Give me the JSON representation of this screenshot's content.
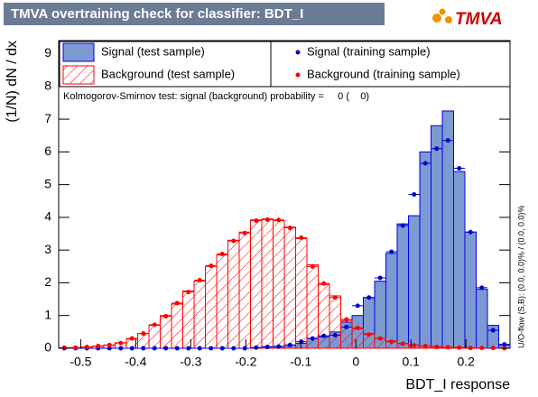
{
  "chart_data": {
    "type": "histogram",
    "title": "TMVA overtraining check for classifier: BDT_I",
    "logo_text": "TMVA",
    "y_label": "(1/N) dN / dx",
    "x_label": "BDT_I response",
    "side_label": "U/O-flow (S,B): (0.0, 0.0)% / (0.0, 0.0)%",
    "ks_text": "Kolmogorov-Smirnov test: signal (background) probability =     0 (    0)",
    "xlim": [
      -0.54,
      0.28
    ],
    "ylim": [
      0,
      9.4
    ],
    "xticks": [
      -0.5,
      -0.4,
      -0.3,
      -0.2,
      -0.1,
      0,
      0.1,
      0.2
    ],
    "yticks": [
      0,
      1,
      2,
      3,
      4,
      5,
      6,
      7,
      8,
      9
    ],
    "bins": [
      -0.54,
      -0.5195,
      -0.499,
      -0.4785,
      -0.458,
      -0.4375,
      -0.417,
      -0.3965,
      -0.376,
      -0.3555,
      -0.335,
      -0.3145,
      -0.294,
      -0.2735,
      -0.253,
      -0.2325,
      -0.212,
      -0.1915,
      -0.171,
      -0.1505,
      -0.13,
      -0.1095,
      -0.089,
      -0.0685,
      -0.048,
      -0.0275,
      -0.007,
      0.0135,
      0.034,
      0.0545,
      0.075,
      0.0955,
      0.116,
      0.1365,
      0.157,
      0.1775,
      0.198,
      0.2185,
      0.239,
      0.2595,
      0.28
    ],
    "series": [
      {
        "name": "Signal (test sample)",
        "color": "#7d99d1",
        "style": "filled",
        "values": [
          0,
          0,
          0,
          0,
          0,
          0,
          0,
          0,
          0,
          0,
          0,
          0,
          0,
          0,
          0,
          0,
          0,
          0.02,
          0.05,
          0.06,
          0.1,
          0.15,
          0.3,
          0.35,
          0.5,
          0.8,
          1.0,
          1.55,
          2.05,
          2.9,
          3.8,
          4.05,
          6.0,
          6.8,
          7.25,
          5.4,
          3.55,
          1.8,
          0.7,
          0.1
        ]
      },
      {
        "name": "Background (test sample)",
        "color": "#ff0000",
        "style": "hatched",
        "values": [
          0.01,
          0.02,
          0.04,
          0.06,
          0.1,
          0.17,
          0.28,
          0.45,
          0.7,
          1.0,
          1.35,
          1.75,
          2.05,
          2.5,
          2.85,
          3.3,
          3.55,
          3.92,
          3.95,
          3.9,
          3.7,
          3.35,
          2.55,
          1.95,
          1.6,
          0.85,
          0.6,
          0.45,
          0.3,
          0.22,
          0.15,
          0.1,
          0.07,
          0.05,
          0.03,
          0.02,
          0.01,
          0.01,
          0,
          0
        ]
      },
      {
        "name": "Signal (training sample)",
        "color": "#0000cc",
        "style": "points",
        "values": [
          0,
          0,
          0,
          0,
          0,
          0,
          0,
          0,
          0,
          0,
          0,
          0,
          0,
          0,
          0,
          0,
          0,
          0.02,
          0.04,
          0.05,
          0.1,
          0.2,
          0.3,
          0.38,
          0.4,
          0.65,
          1.3,
          1.55,
          2.15,
          2.95,
          3.75,
          4.7,
          5.65,
          6.1,
          6.35,
          5.5,
          3.55,
          1.85,
          0.55,
          0.12
        ]
      },
      {
        "name": "Background (training sample)",
        "color": "#ff0000",
        "style": "points",
        "values": [
          0.02,
          0.02,
          0.04,
          0.07,
          0.1,
          0.16,
          0.3,
          0.45,
          0.72,
          0.98,
          1.38,
          1.72,
          2.08,
          2.52,
          2.88,
          3.28,
          3.52,
          3.9,
          3.93,
          3.92,
          3.68,
          3.38,
          2.5,
          1.98,
          1.55,
          0.88,
          0.62,
          0.42,
          0.3,
          0.2,
          0.14,
          0.09,
          0.07,
          0.04,
          0.03,
          0.02,
          0.01,
          0.01,
          0.01,
          0
        ]
      }
    ]
  }
}
